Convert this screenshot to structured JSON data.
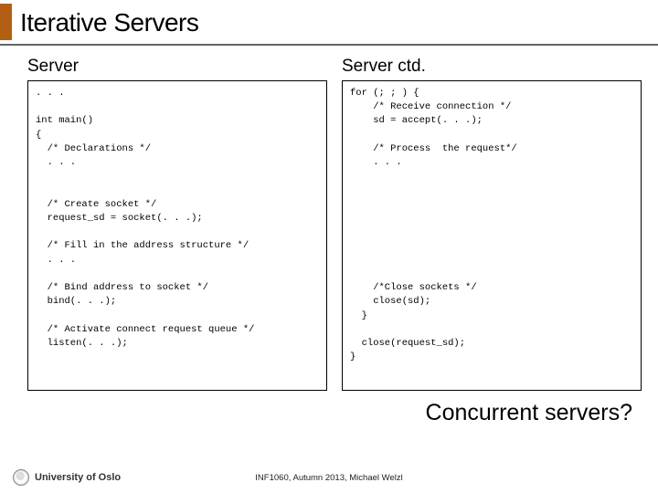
{
  "slide": {
    "title": "Iterative Servers",
    "left_heading": "Server",
    "right_heading": "Server ctd.",
    "question": "Concurrent servers?",
    "code_left": ". . .\n\nint main()\n{\n  /* Declarations */\n  . . .\n\n\n  /* Create socket */\n  request_sd = socket(. . .);\n\n  /* Fill in the address structure */\n  . . .\n\n  /* Bind address to socket */\n  bind(. . .);\n\n  /* Activate connect request queue */\n  listen(. . .);",
    "code_right": "for (; ; ) {\n    /* Receive connection */\n    sd = accept(. . .);\n\n    /* Process  the request*/\n    . . .\n\n\n\n\n\n\n\n\n    /*Close sockets */\n    close(sd);\n  }\n\n  close(request_sd);\n}"
  },
  "footer": {
    "institution": "University of Oslo",
    "course_line": "INF1060, Autumn 2013, Michael Welzl"
  },
  "colors": {
    "accent": "#b25f14",
    "underline": "#666666"
  }
}
